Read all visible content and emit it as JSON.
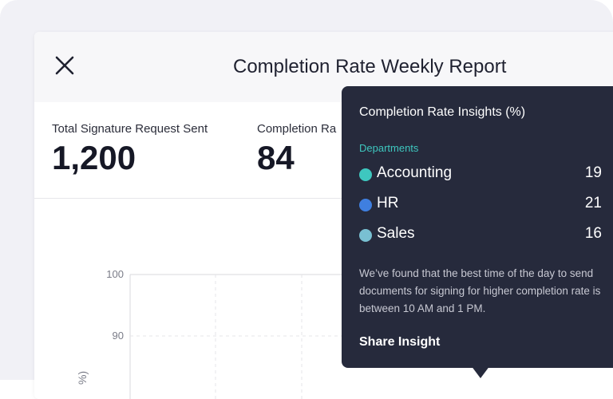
{
  "report": {
    "title": "Completion Rate Weekly Report",
    "close_icon": "close-icon"
  },
  "stats": [
    {
      "label": "Total Signature Request Sent",
      "value": "1,200"
    },
    {
      "label": "Completion Ra",
      "value": "84"
    }
  ],
  "chart_data": {
    "type": "line",
    "ylabel": "%)",
    "y_ticks": [
      "100",
      "90"
    ],
    "ylim": [
      80,
      100
    ],
    "grid": true
  },
  "tooltip": {
    "title": "Completion Rate Insights (%)",
    "section_label": "Departments",
    "departments": [
      {
        "name": "Accounting",
        "value": "19",
        "color": "#3ec7bf"
      },
      {
        "name": "HR",
        "value": "21",
        "color": "#3f7fe0"
      },
      {
        "name": "Sales",
        "value": "16",
        "color": "#79c0d2"
      }
    ],
    "description": "We’ve found that the best time of the day to send documents for signing for higher completion rate is between 10 AM and 1 PM.",
    "share_label": "Share Insight"
  },
  "colors": {
    "tooltip_bg": "#262a3c",
    "accent": "#3ec7bf"
  }
}
